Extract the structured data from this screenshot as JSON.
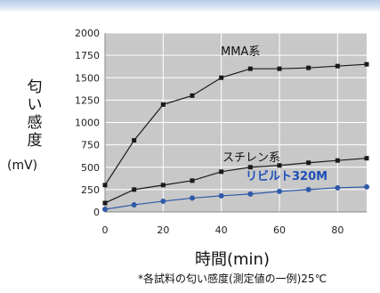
{
  "colors": {
    "plot_bg": "#c8c8c8",
    "black_series": "#1a1a1a",
    "blue_series": "#2e5aa8",
    "blue_label": "#1d4fb8",
    "grid": "#ffffff"
  },
  "chart_data": {
    "type": "line",
    "xlabel": "時間(min)",
    "ylabel": "匂い感度",
    "yunit": "(mV)",
    "note": "*各試料の匂い感度(測定値の一例)25℃",
    "xlim": [
      0,
      90
    ],
    "ylim": [
      0,
      2000
    ],
    "x_ticks": [
      0,
      20,
      40,
      60,
      80
    ],
    "y_ticks": [
      0,
      250,
      500,
      750,
      1000,
      1250,
      1500,
      1750,
      2000
    ],
    "grid": true,
    "series": [
      {
        "name": "MMA系",
        "x": [
          0,
          10,
          20,
          30,
          40,
          50,
          60,
          70,
          80,
          90
        ],
        "y": [
          300,
          800,
          1200,
          1300,
          1500,
          1600,
          1600,
          1610,
          1630,
          1650
        ]
      },
      {
        "name": "スチレン系",
        "x": [
          0,
          10,
          20,
          30,
          40,
          50,
          60,
          70,
          80,
          90
        ],
        "y": [
          100,
          250,
          300,
          350,
          450,
          500,
          520,
          550,
          575,
          600
        ]
      },
      {
        "name": "リビルト320M",
        "x": [
          0,
          10,
          20,
          30,
          40,
          50,
          60,
          70,
          80,
          90
        ],
        "y": [
          30,
          80,
          120,
          155,
          180,
          200,
          230,
          250,
          270,
          280
        ]
      }
    ]
  }
}
